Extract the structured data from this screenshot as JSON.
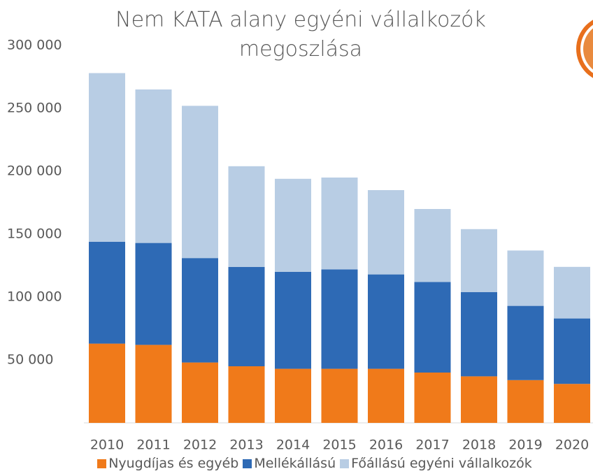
{
  "chart_data": {
    "type": "stacked_bar",
    "title": "Nem KATA alany egyéni vállalkozók megoszlása",
    "categories": [
      "2010",
      "2011",
      "2012",
      "2013",
      "2014",
      "2015",
      "2016",
      "2017",
      "2018",
      "2019",
      "2020"
    ],
    "series": [
      {
        "name": "Nyugdíjas és egyéb",
        "color": "#f07a1a",
        "values": [
          63000,
          62000,
          48000,
          45000,
          43000,
          43000,
          43000,
          40000,
          37000,
          34000,
          31000
        ]
      },
      {
        "name": "Mellékállású",
        "color": "#2e6ab5",
        "values": [
          81000,
          81000,
          83000,
          79000,
          77000,
          79000,
          75000,
          72000,
          67000,
          59000,
          52000
        ]
      },
      {
        "name": "Főállású egyéni vállalkozók",
        "color": "#b8cde4",
        "values": [
          134000,
          122000,
          121000,
          80000,
          74000,
          73000,
          67000,
          58000,
          50000,
          44000,
          41000
        ]
      }
    ],
    "ylim": [
      0,
      300000
    ],
    "yticks": [
      {
        "value": 50000,
        "label": "50 000"
      },
      {
        "value": 100000,
        "label": "100 000"
      },
      {
        "value": 150000,
        "label": "150 000"
      },
      {
        "value": 200000,
        "label": "200 000"
      },
      {
        "value": 250000,
        "label": "250 000"
      },
      {
        "value": 300000,
        "label": "300 000"
      }
    ],
    "grid": false,
    "legend": "bottom"
  }
}
